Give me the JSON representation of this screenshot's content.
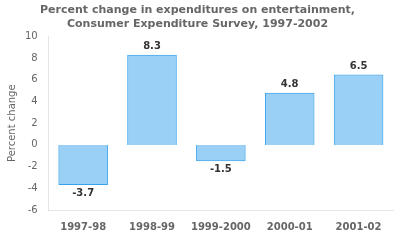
{
  "chart_data": {
    "type": "bar",
    "title": [
      "Percent change in expenditures on entertainment,",
      "Consumer Expenditure Survey, 1997-2002"
    ],
    "ylabel": "Percent change",
    "categories": [
      "1997-98",
      "1998-99",
      "1999-2000",
      "2000-01",
      "2001-02"
    ],
    "values": [
      -3.7,
      8.3,
      -1.5,
      4.8,
      6.5
    ],
    "ylim": [
      -6,
      10
    ],
    "yticks": [
      -6,
      -4,
      -2,
      0,
      2,
      4,
      6,
      8,
      10
    ],
    "grid": false,
    "data_labels": true
  }
}
